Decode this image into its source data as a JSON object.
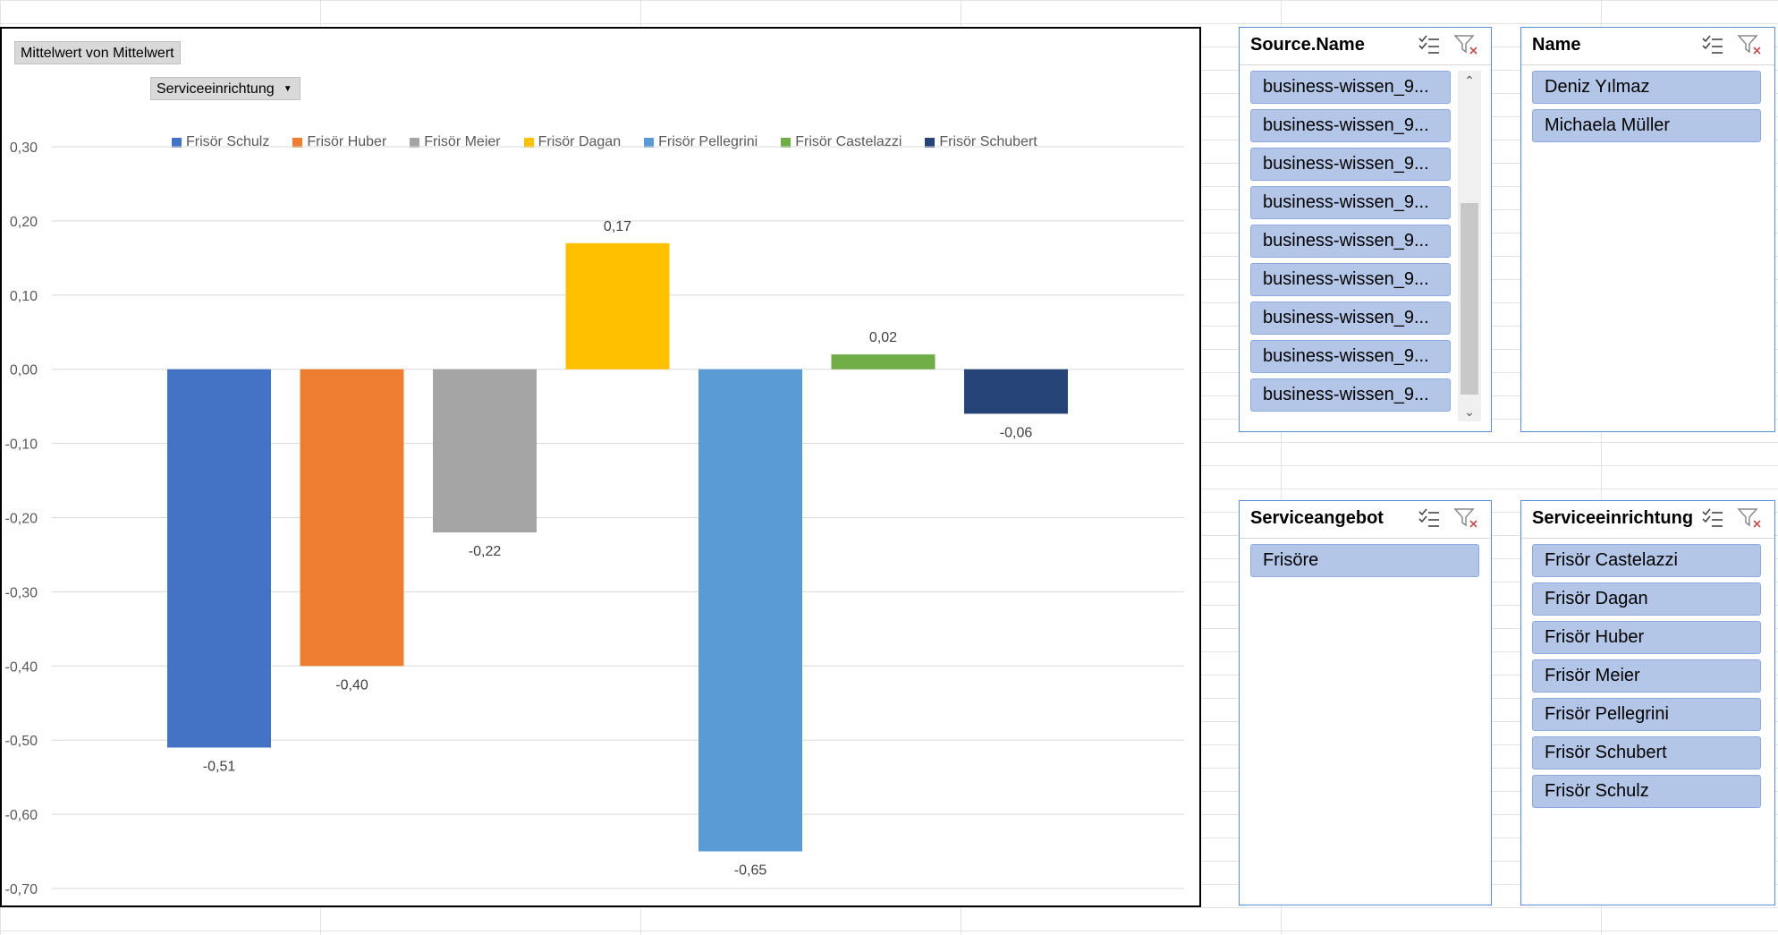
{
  "chart_data": {
    "type": "bar",
    "title_button": "Mittelwert von Mittelwert",
    "field_button": "Serviceeinrichtung",
    "categories": [
      "Frisör Schulz",
      "Frisör Huber",
      "Frisör Meier",
      "Frisör Dagan",
      "Frisör Pellegrini",
      "Frisör Castelazzi",
      "Frisör Schubert"
    ],
    "values": [
      -0.51,
      -0.4,
      -0.22,
      0.17,
      -0.65,
      0.02,
      -0.06
    ],
    "value_labels": [
      "-0,51",
      "-0,40",
      "-0,22",
      "0,17",
      "-0,65",
      "0,02",
      "-0,06"
    ],
    "colors": [
      "#4472c4",
      "#ed7d31",
      "#a5a5a5",
      "#ffc000",
      "#5b9bd5",
      "#70ad47",
      "#264478"
    ],
    "ylim": [
      -0.7,
      0.3
    ],
    "yticks": [
      0.3,
      0.2,
      0.1,
      0.0,
      -0.1,
      -0.2,
      -0.3,
      -0.4,
      -0.5,
      -0.6,
      -0.7
    ],
    "ytick_labels": [
      "0,30",
      "0,20",
      "0,10",
      "0,00",
      "-0,10",
      "-0,20",
      "-0,30",
      "-0,40",
      "-0,50",
      "-0,60",
      "-0,70"
    ],
    "grid": true,
    "legend_position": "top"
  },
  "slicers": {
    "source": {
      "title": "Source.Name",
      "items": [
        "business-wissen_9...",
        "business-wissen_9...",
        "business-wissen_9...",
        "business-wissen_9...",
        "business-wissen_9...",
        "business-wissen_9...",
        "business-wissen_9...",
        "business-wissen_9...",
        "business-wissen_9..."
      ]
    },
    "name": {
      "title": "Name",
      "items": [
        "Deniz Yılmaz",
        "Michaela Müller"
      ]
    },
    "angebot": {
      "title": "Serviceangebot",
      "items": [
        "Frisöre"
      ]
    },
    "einrichtung": {
      "title": "Serviceeinrichtung",
      "items": [
        "Frisör Castelazzi",
        "Frisör Dagan",
        "Frisör Huber",
        "Frisör Meier",
        "Frisör Pellegrini",
        "Frisör Schubert",
        "Frisör Schulz"
      ]
    }
  },
  "icons": {
    "multi_select": "multi-select-icon",
    "clear_filter": "clear-filter-icon",
    "dropdown": "dropdown-arrow-icon"
  }
}
